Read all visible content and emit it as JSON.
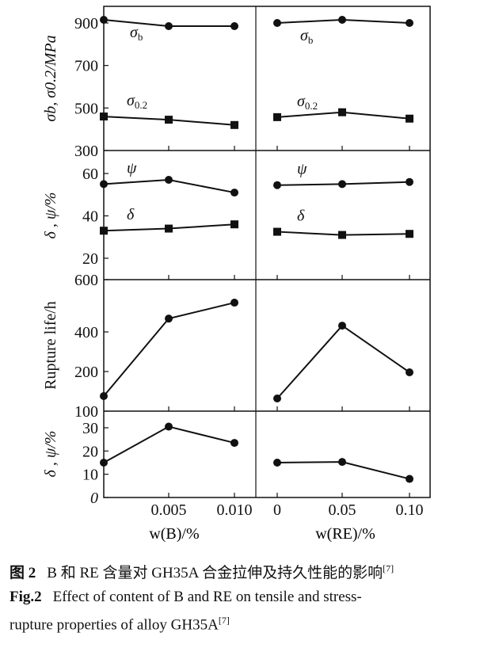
{
  "chart_data": {
    "type": "line",
    "layout": "4 stacked panels x 2 columns, shared x axes per column",
    "columns": [
      {
        "xlabel": "w(B)/%",
        "xticks": [
          0,
          0.005,
          0.01
        ],
        "xtick_labels": [
          "0",
          "0.005",
          "0.010"
        ],
        "xlim": [
          0,
          0.01
        ]
      },
      {
        "xlabel": "w(RE)/%",
        "xticks": [
          0,
          0.05,
          0.1
        ],
        "xtick_labels": [
          "0",
          "0.05",
          "0.10"
        ],
        "xlim": [
          0,
          0.1
        ]
      }
    ],
    "panels": [
      {
        "ylabel": "σb, σ0.2/MPa",
        "yticks": [
          300,
          500,
          700,
          900
        ],
        "ylim": [
          300,
          978
        ],
        "series": [
          {
            "name": "σb",
            "marker": "circle",
            "B": [
              915,
              885,
              885
            ],
            "RE": [
              900,
              915,
              900
            ]
          },
          {
            "name": "σ0.2",
            "marker": "square",
            "B": [
              460,
              445,
              420
            ],
            "RE": [
              457,
              480,
              450
            ]
          }
        ]
      },
      {
        "ylabel": "δ , ψ/%",
        "yticks": [
          20,
          40,
          60
        ],
        "ylim": [
          10,
          71
        ],
        "series": [
          {
            "name": "ψ",
            "marker": "circle",
            "B": [
              55,
              57,
              51
            ],
            "RE": [
              54.5,
              55,
              56
            ]
          },
          {
            "name": "δ",
            "marker": "square",
            "B": [
              33,
              34,
              36
            ],
            "RE": [
              32.5,
              31,
              31.5
            ]
          }
        ]
      },
      {
        "ylabel": "Rupture life/h",
        "yticks": [
          100,
          200,
          400,
          600
        ],
        "ylim": [
          100,
          600
        ],
        "series": [
          {
            "name": "",
            "marker": "circle",
            "B": [
              138,
              451,
              512
            ],
            "RE": [
              132,
              424,
              198
            ]
          }
        ]
      },
      {
        "ylabel": "δ , ψ/%",
        "yticks": [
          0,
          10,
          20,
          30
        ],
        "ylim": [
          0,
          37
        ],
        "series": [
          {
            "name": "",
            "marker": "circle",
            "B": [
              15,
              30.5,
              23.5
            ],
            "RE": [
              15,
              15.3,
              8
            ]
          }
        ]
      }
    ]
  },
  "caption": {
    "cn_label": "图 2",
    "cn_text": "B 和 RE 含量对 GH35A 合金拉伸及持久性能的影响",
    "ref": "[7]",
    "en_label": "Fig.2",
    "en_line1": "Effect of content of B and RE on tensile and stress-",
    "en_line2": "rupture properties of alloy GH35A"
  },
  "colors": {
    "ink": "#111111",
    "background": "#ffffff"
  }
}
